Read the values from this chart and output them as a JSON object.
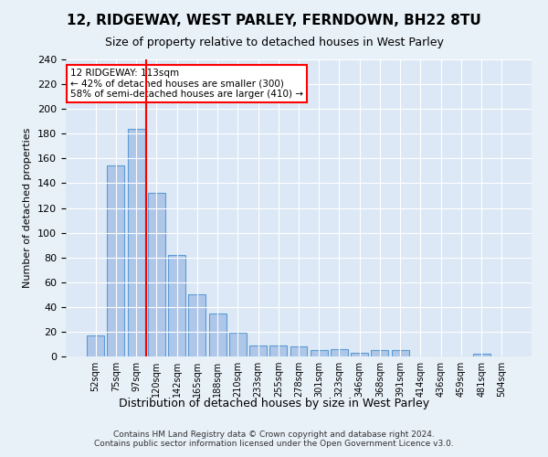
{
  "title": "12, RIDGEWAY, WEST PARLEY, FERNDOWN, BH22 8TU",
  "subtitle": "Size of property relative to detached houses in West Parley",
  "xlabel": "Distribution of detached houses by size in West Parley",
  "ylabel": "Number of detached properties",
  "bar_labels": [
    "52sqm",
    "75sqm",
    "97sqm",
    "120sqm",
    "142sqm",
    "165sqm",
    "188sqm",
    "210sqm",
    "233sqm",
    "255sqm",
    "278sqm",
    "301sqm",
    "323sqm",
    "346sqm",
    "368sqm",
    "391sqm",
    "414sqm",
    "436sqm",
    "459sqm",
    "481sqm",
    "504sqm"
  ],
  "bar_values": [
    17,
    154,
    184,
    132,
    82,
    50,
    35,
    19,
    9,
    9,
    8,
    5,
    6,
    3,
    5,
    5,
    0,
    0,
    0,
    2,
    0
  ],
  "bar_color": "#aec6e8",
  "bar_edge_color": "#5b9bd5",
  "vline_x": 2.5,
  "vline_color": "red",
  "annotation_text": "12 RIDGEWAY: 113sqm\n← 42% of detached houses are smaller (300)\n58% of semi-detached houses are larger (410) →",
  "annotation_box_color": "white",
  "annotation_box_edge_color": "red",
  "ylim": [
    0,
    240
  ],
  "yticks": [
    0,
    20,
    40,
    60,
    80,
    100,
    120,
    140,
    160,
    180,
    200,
    220,
    240
  ],
  "footer": "Contains HM Land Registry data © Crown copyright and database right 2024.\nContains public sector information licensed under the Open Government Licence v3.0.",
  "bg_color": "#e8f0f8",
  "plot_bg_color": "#dce8f5"
}
